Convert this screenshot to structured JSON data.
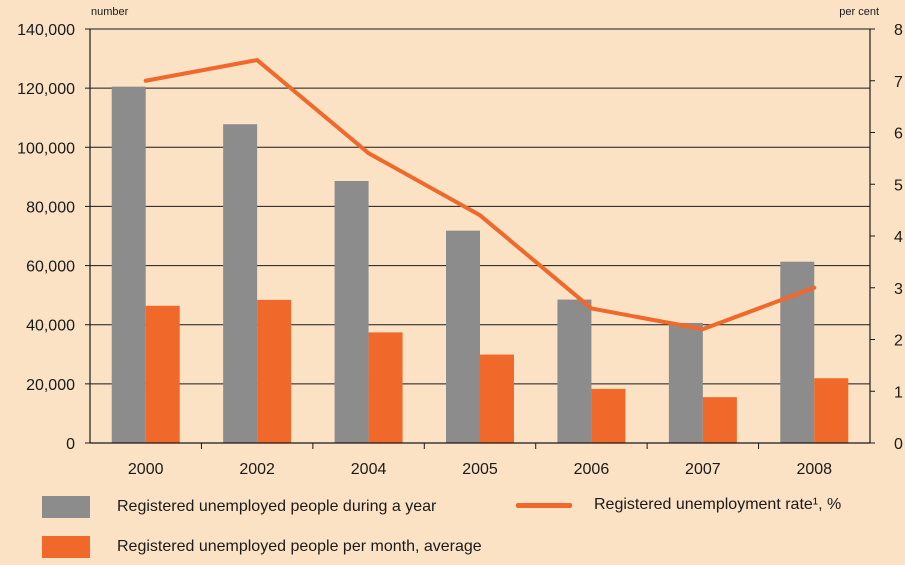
{
  "colors": {
    "background": "#fbe2c4",
    "bar_annual": "#8c8c8c",
    "bar_monthly": "#f0682a",
    "line_rate": "#f0682a",
    "axis": "#1a1a1a"
  },
  "chart_data": {
    "type": "bar",
    "title": "",
    "left_axis_unit": "number",
    "right_axis_unit": "per cent",
    "categories": [
      "2000",
      "2002",
      "2004",
      "2005",
      "2006",
      "2007",
      "2008"
    ],
    "ylim_left": [
      0,
      140000
    ],
    "ylim_right": [
      0,
      8
    ],
    "left_ticks": [
      {
        "v": 0,
        "label": "0"
      },
      {
        "v": 20000,
        "label": "20,000"
      },
      {
        "v": 40000,
        "label": "40,000"
      },
      {
        "v": 60000,
        "label": "60,000"
      },
      {
        "v": 80000,
        "label": "80,000"
      },
      {
        "v": 100000,
        "label": "100,000"
      },
      {
        "v": 120000,
        "label": "120,000"
      },
      {
        "v": 140000,
        "label": "140,000"
      }
    ],
    "right_ticks": [
      {
        "v": 0,
        "label": "0"
      },
      {
        "v": 1,
        "label": "1"
      },
      {
        "v": 2,
        "label": "2"
      },
      {
        "v": 3,
        "label": "3"
      },
      {
        "v": 4,
        "label": "4"
      },
      {
        "v": 5,
        "label": "5"
      },
      {
        "v": 6,
        "label": "6"
      },
      {
        "v": 7,
        "label": "7"
      },
      {
        "v": 8,
        "label": "8"
      }
    ],
    "grid": true,
    "legend_position": "bottom",
    "series": [
      {
        "name": "Registered unemployed people during a year",
        "type": "bar",
        "axis": "left",
        "values": [
          120500,
          107800,
          88600,
          71800,
          48500,
          40600,
          61300
        ]
      },
      {
        "name": "Registered unemployed people per month, average",
        "type": "bar",
        "axis": "left",
        "values": [
          46400,
          48400,
          37400,
          29900,
          18300,
          15500,
          21900
        ]
      },
      {
        "name": "Registered unemployment rate¹, %",
        "type": "line",
        "axis": "right",
        "values": [
          7.0,
          7.4,
          5.6,
          4.4,
          2.6,
          2.2,
          3.0
        ]
      }
    ]
  }
}
